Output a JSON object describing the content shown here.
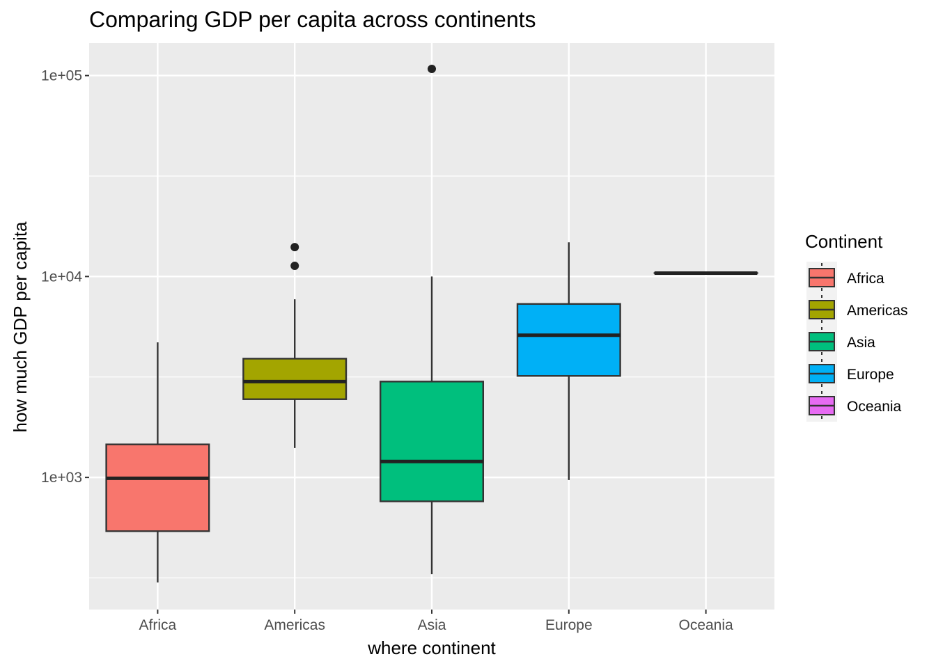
{
  "chart_data": {
    "type": "box",
    "title": "Comparing GDP per capita across continents",
    "xlabel": "where continent",
    "ylabel": "how much GDP per capita",
    "y_scale": "log10",
    "ylim": [
      220,
      145000
    ],
    "y_ticks": [
      {
        "value": 1000,
        "label": "1e+03"
      },
      {
        "value": 10000,
        "label": "1e+04"
      },
      {
        "value": 100000,
        "label": "1e+05"
      }
    ],
    "grid": true,
    "legend": {
      "title": "Continent",
      "position": "right"
    },
    "categories": [
      "Africa",
      "Americas",
      "Asia",
      "Europe",
      "Oceania"
    ],
    "colors": [
      "#F8766D",
      "#A3A500",
      "#00BF7D",
      "#00B0F6",
      "#E76BF3"
    ],
    "boxes": [
      {
        "category": "Africa",
        "whisker_low": 300,
        "q1": 540,
        "median": 990,
        "q3": 1460,
        "whisker_high": 4700,
        "outliers": []
      },
      {
        "category": "Americas",
        "whisker_low": 1400,
        "q1": 2450,
        "median": 3000,
        "q3": 3900,
        "whisker_high": 7700,
        "outliers": [
          11300,
          14000
        ]
      },
      {
        "category": "Asia",
        "whisker_low": 330,
        "q1": 760,
        "median": 1200,
        "q3": 3000,
        "whisker_high": 10000,
        "outliers": [
          108000
        ]
      },
      {
        "category": "Europe",
        "whisker_low": 970,
        "q1": 3200,
        "median": 5100,
        "q3": 7300,
        "whisker_high": 14800,
        "outliers": []
      },
      {
        "category": "Oceania",
        "whisker_low": 10400,
        "q1": 10400,
        "median": 10400,
        "q3": 10400,
        "whisker_high": 10400,
        "outliers": []
      }
    ]
  }
}
